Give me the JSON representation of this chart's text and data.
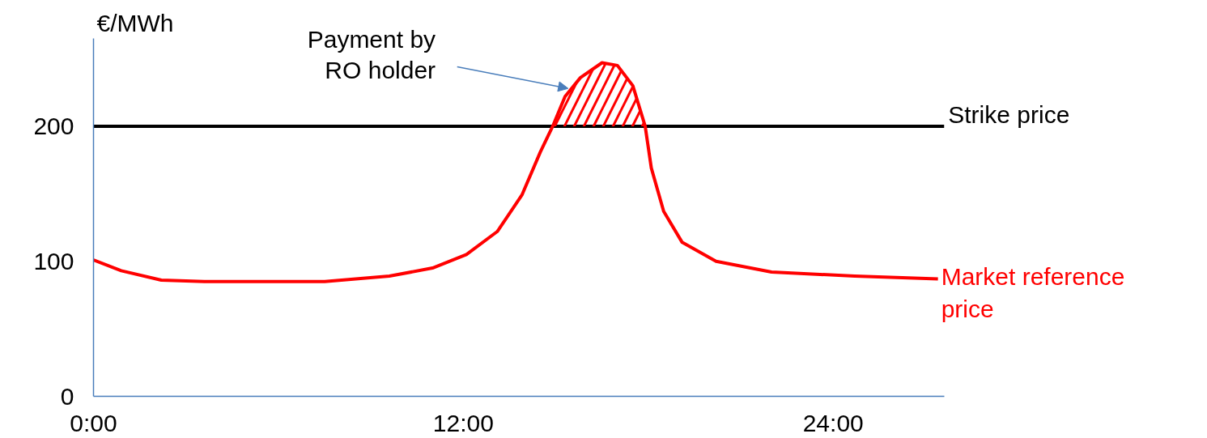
{
  "chart_data": {
    "type": "line",
    "ylabel": "€/MWh",
    "x": [
      0,
      0.9,
      2.2,
      3.6,
      7.5,
      9.6,
      11.0,
      12.1,
      13.1,
      13.9,
      14.5,
      14.9,
      15.3,
      15.8,
      16.5,
      17.0,
      17.5,
      17.9,
      18.1,
      18.5,
      19.1,
      20.2,
      22.0,
      24.7,
      27.4
    ],
    "series": [
      {
        "name": "Market reference price",
        "color": "#ff0000",
        "values": [
          101,
          93,
          86,
          85,
          85,
          89,
          95,
          105,
          122,
          149,
          181,
          200,
          222,
          236,
          247,
          245,
          230,
          200,
          169,
          137,
          114,
          100,
          92,
          89,
          87
        ]
      },
      {
        "type": "area",
        "color": "#ff0000",
        "x": [
          14.9,
          15.3,
          15.8,
          16.5,
          17.0,
          17.5,
          17.9
        ],
        "values": [
          200,
          222,
          236,
          247,
          245,
          230,
          200
        ]
      }
    ],
    "xlim": [
      0,
      27.6
    ],
    "ylim": [
      0,
      265
    ],
    "xticks": [
      {
        "value": 0,
        "label": "0:00"
      },
      {
        "value": 12,
        "label": "12:00"
      },
      {
        "value": 24,
        "label": "24:00"
      }
    ],
    "yticks": [
      0,
      100,
      200
    ],
    "ref_lines": [
      {
        "axis": "y",
        "value": 200,
        "label": "Strike price",
        "color": "#000000"
      }
    ],
    "annotations": [
      {
        "text": "Payment by\nRO holder",
        "x": 15.4,
        "y": 228
      }
    ],
    "grid": false,
    "marker": "none",
    "line_style": "solid"
  }
}
